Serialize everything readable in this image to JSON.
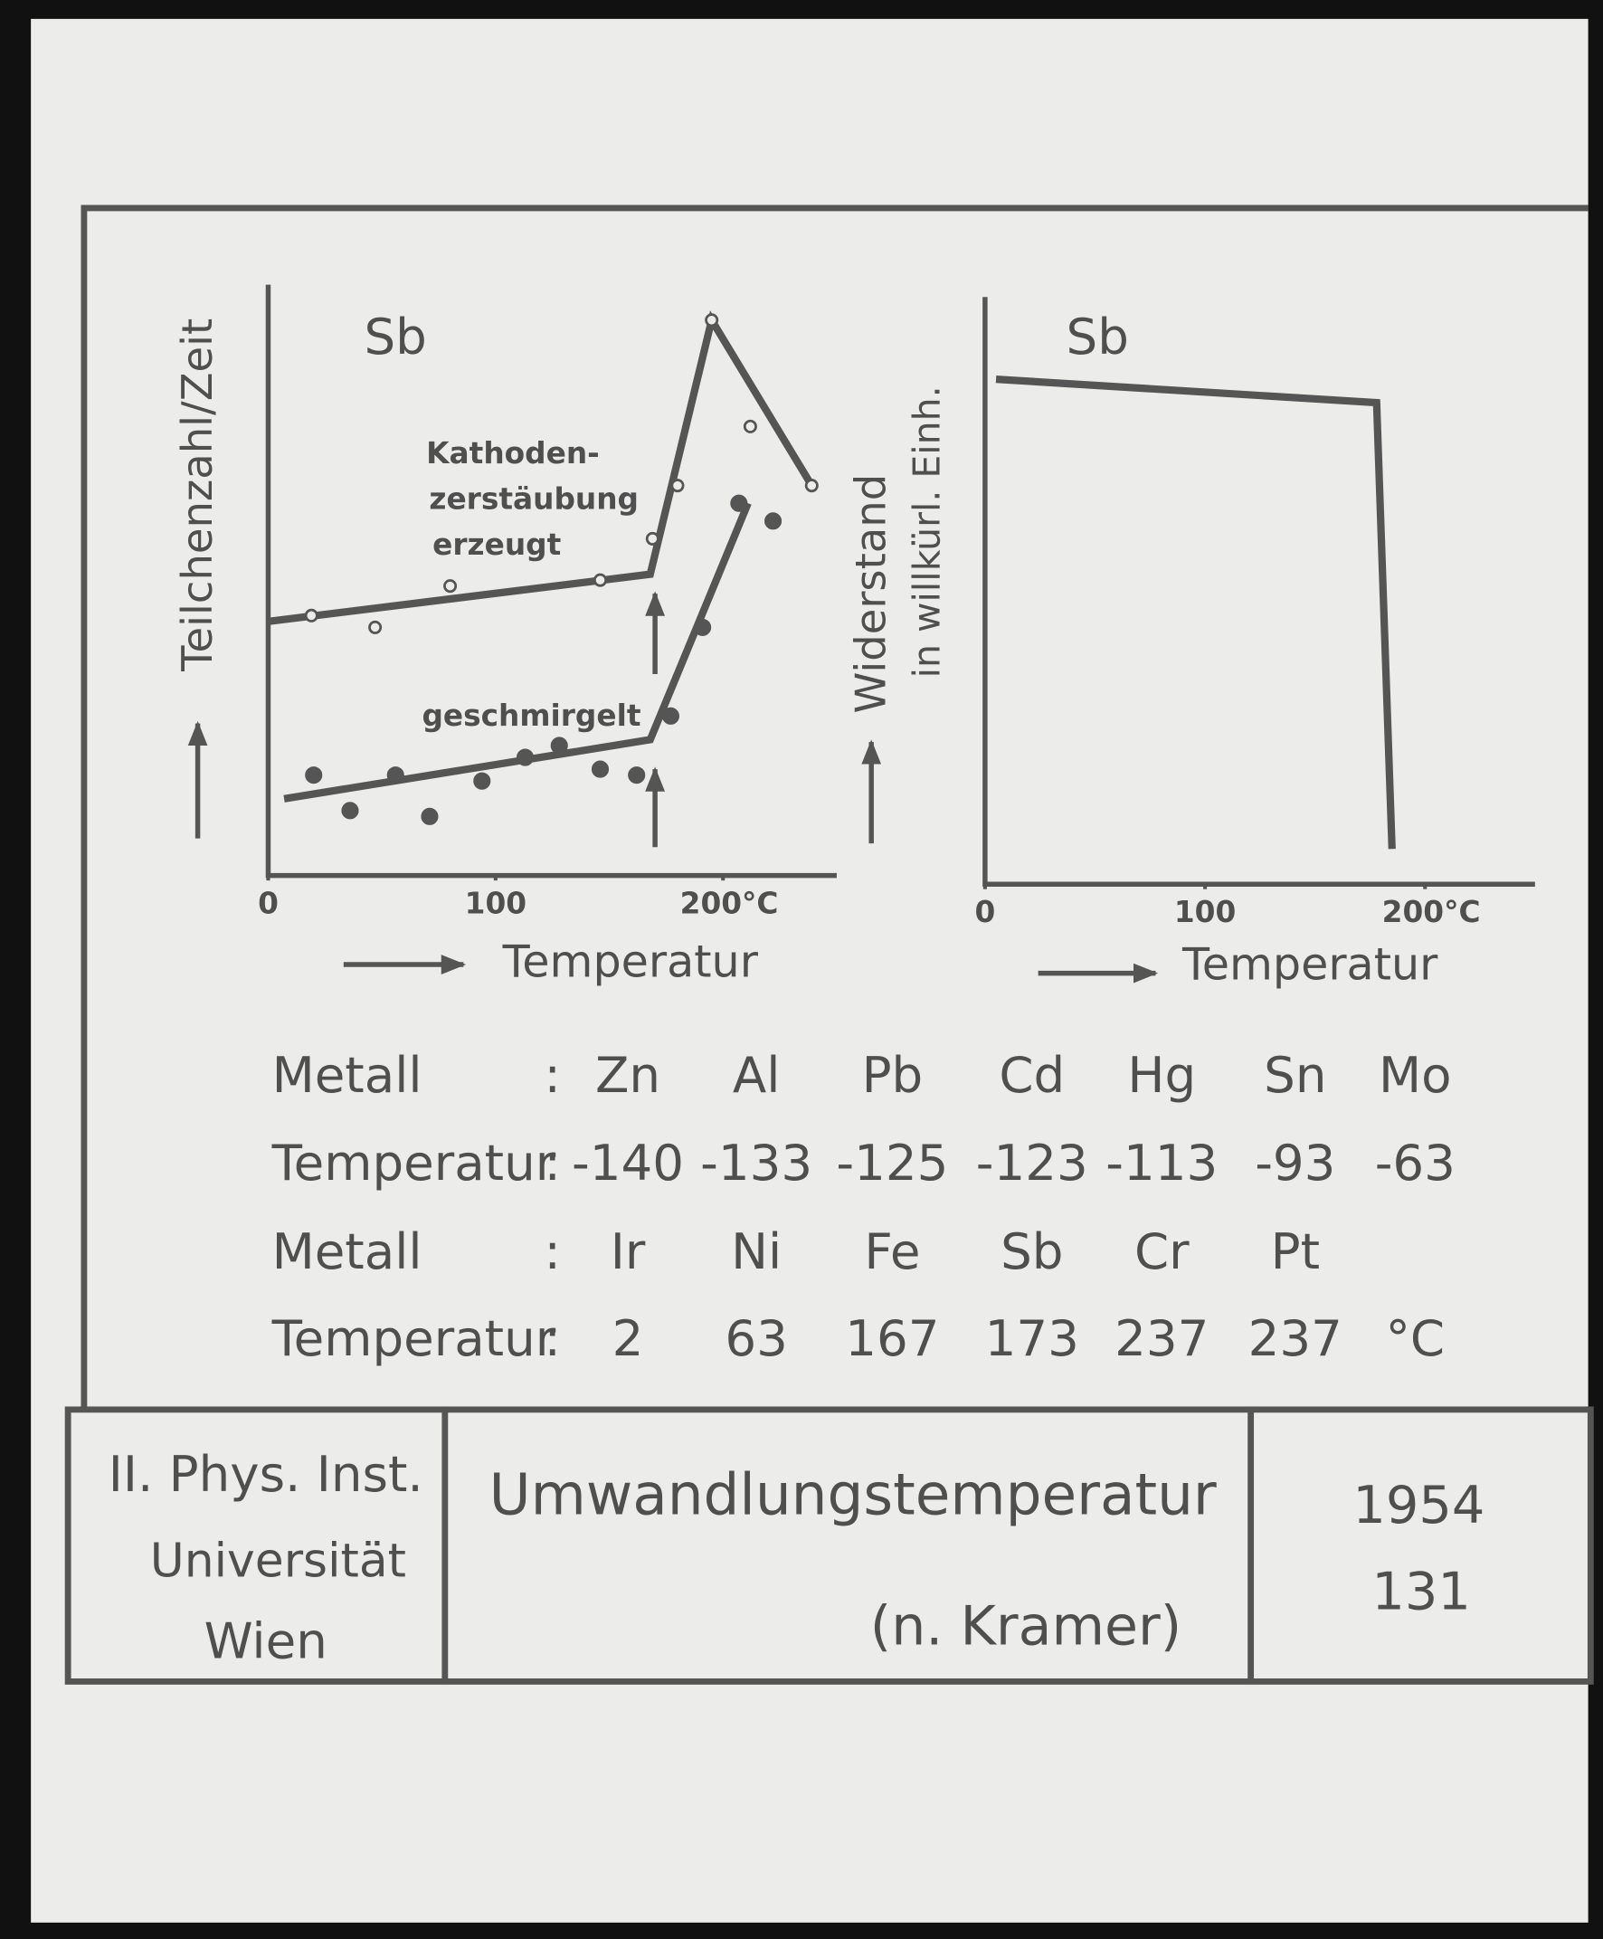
{
  "chart_data": [
    {
      "type": "scatter",
      "title": "Sb",
      "y_label": "Teilchenzahl/Zeit",
      "x_label": "Temperatur",
      "xlim": [
        0,
        250
      ],
      "ylim": [
        0,
        100
      ],
      "xticks": [
        0,
        100,
        {
          "value": 200,
          "label": "200°C"
        }
      ],
      "grid": false,
      "color": "#555555",
      "series": [
        {
          "label": [
            "Kathoden-",
            "zerstäubung",
            "erzeugt"
          ],
          "marker": "open",
          "x": [
            19,
            47,
            80,
            146,
            169,
            180,
            195,
            212,
            239
          ],
          "values": [
            44,
            42,
            49,
            50,
            57,
            66,
            94,
            76,
            66
          ],
          "line_x": [
            0,
            168,
            195,
            239
          ],
          "line_values": [
            43,
            51,
            94,
            66
          ]
        },
        {
          "label": [
            "geschmirgelt"
          ],
          "marker": "filled",
          "x": [
            20,
            36,
            56,
            71,
            94,
            113,
            128,
            146,
            162,
            177,
            191,
            207,
            222
          ],
          "values": [
            17,
            11,
            17,
            10,
            16,
            20,
            22,
            18,
            17,
            27,
            42,
            63,
            60
          ],
          "line_x": [
            7,
            168,
            211
          ],
          "line_values": [
            13,
            23,
            63
          ]
        }
      ]
    },
    {
      "type": "line",
      "title": "Sb",
      "y_label": "Widerstand",
      "y_label_2": "in willkürl. Einh.",
      "x_label": "Temperatur",
      "xlim": [
        0,
        250
      ],
      "ylim": [
        0,
        100
      ],
      "xticks": [
        0,
        100,
        {
          "value": 200,
          "label": "200°C"
        }
      ],
      "grid": false,
      "color": "#555555",
      "series": [
        {
          "x": [
            5,
            178,
            185
          ],
          "values": [
            86,
            82,
            6
          ]
        }
      ]
    }
  ],
  "table": {
    "rows": [
      [
        "Metall",
        ":",
        "Zn",
        "Al",
        "Pb",
        "Cd",
        "Hg",
        "Sn",
        "Mo"
      ],
      [
        "Temperatur",
        ":",
        "-140",
        "-133",
        "-125",
        "-123",
        "-113",
        "-93",
        "-63"
      ],
      [
        "Metall",
        ":",
        "Ir",
        "Ni",
        "Fe",
        "Sb",
        "Cr",
        "Pt"
      ],
      [
        "Temperatur",
        ":",
        "2",
        "63",
        "167",
        "173",
        "237",
        "237",
        "°C"
      ]
    ]
  },
  "footer": {
    "institute": [
      "II. Phys. Inst.",
      "Universität",
      "Wien"
    ],
    "title": "Umwandlungstemperatur",
    "subtitle": "(n. Kramer)",
    "year": "1954",
    "number": "131"
  }
}
